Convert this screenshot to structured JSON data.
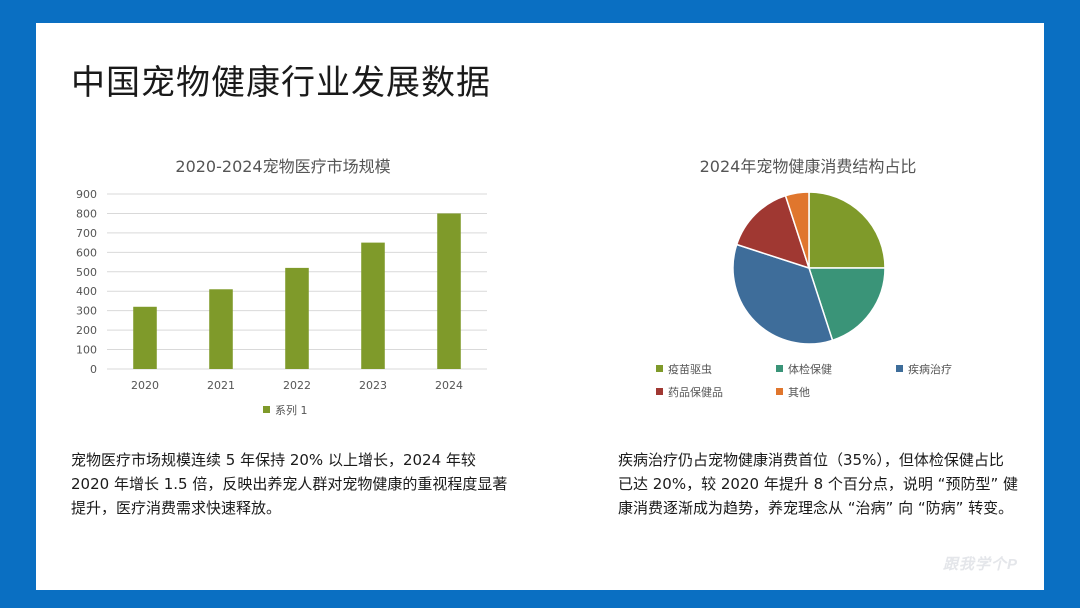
{
  "slide": {
    "title": "中国宠物健康行业发展数据",
    "desc_left": "宠物医疗市场规模连续 5 年保持 20% 以上增长，2024 年较 2020 年增长 1.5 倍，反映出养宠人群对宠物健康的重视程度显著提升，医疗消费需求快速释放。",
    "desc_right": "疾病治疗仍占宠物健康消费首位（35%），但体检保健占比已达 20%，较 2020 年提升 8 个百分点，说明 “预防型” 健康消费逐渐成为趋势，养宠理念从 “治病” 向 “防病” 转变。",
    "watermark": "跟我学个P"
  },
  "chart_data": [
    {
      "type": "bar",
      "title": "2020-2024宠物医疗市场规模",
      "categories": [
        "2020",
        "2021",
        "2022",
        "2023",
        "2024"
      ],
      "series": [
        {
          "name": "系列 1",
          "values": [
            320,
            410,
            520,
            650,
            800
          ],
          "color": "#7f9a2a"
        }
      ],
      "ylim": [
        0,
        900
      ],
      "yticks": [
        "0",
        "100",
        "200",
        "300",
        "400",
        "500",
        "600",
        "700",
        "800",
        "900"
      ],
      "grid": true,
      "legend": "bottom"
    },
    {
      "type": "pie",
      "title": "2024年宠物健康消费结构占比",
      "slices": [
        {
          "label": "疫苗驱虫",
          "value": 25,
          "color": "#7f9a2a"
        },
        {
          "label": "体检保健",
          "value": 20,
          "color": "#3a9478"
        },
        {
          "label": "疾病治疗",
          "value": 35,
          "color": "#3e6d9a"
        },
        {
          "label": "药品保健品",
          "value": 15,
          "color": "#a03832"
        },
        {
          "label": "其他",
          "value": 5,
          "color": "#e0762d"
        }
      ],
      "legend": "bottom"
    }
  ]
}
